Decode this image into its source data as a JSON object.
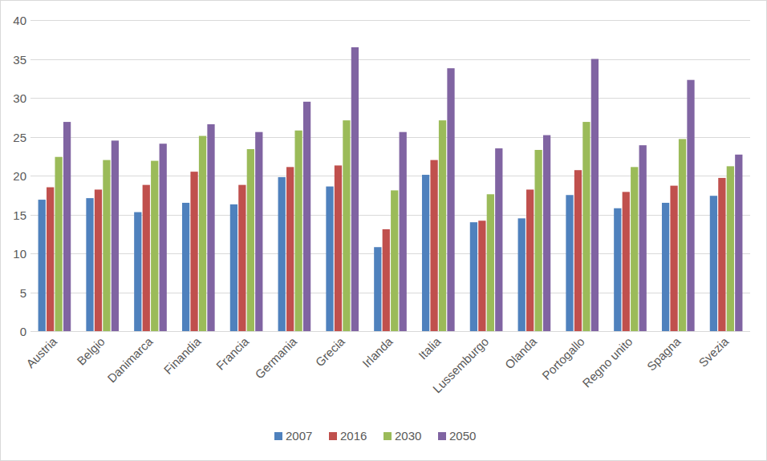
{
  "chart_data": {
    "type": "bar",
    "categories": [
      "Austria",
      "Belgio",
      "Danimarca",
      "Finandia",
      "Francia",
      "Germania",
      "Grecia",
      "Irlanda",
      "Italia",
      "Lussemburgo",
      "Olanda",
      "Portogallo",
      "Regno unito",
      "Spagna",
      "Svezia"
    ],
    "series": [
      {
        "name": "2007",
        "color": "#4f81bd",
        "values": [
          16.9,
          17.1,
          15.3,
          16.5,
          16.3,
          19.8,
          18.6,
          10.8,
          20.1,
          14.0,
          14.5,
          17.5,
          15.8,
          16.5,
          17.4
        ]
      },
      {
        "name": "2016",
        "color": "#c0504d",
        "values": [
          18.5,
          18.2,
          18.8,
          20.5,
          18.8,
          21.1,
          21.3,
          13.1,
          22.0,
          14.2,
          18.2,
          20.7,
          17.9,
          18.7,
          19.7
        ]
      },
      {
        "name": "2030",
        "color": "#9bbb59",
        "values": [
          22.4,
          22.0,
          21.9,
          25.1,
          23.4,
          25.8,
          27.1,
          18.1,
          27.1,
          17.6,
          23.3,
          26.9,
          21.1,
          24.7,
          21.2
        ]
      },
      {
        "name": "2050",
        "color": "#8064a2",
        "values": [
          26.9,
          24.5,
          24.1,
          26.6,
          25.6,
          29.5,
          36.5,
          25.6,
          33.8,
          23.5,
          25.2,
          35.0,
          23.9,
          32.3,
          22.7
        ]
      }
    ],
    "ylim": [
      0,
      40
    ],
    "yticks": [
      0,
      5,
      10,
      15,
      20,
      25,
      30,
      35,
      40
    ],
    "grid": true,
    "legend": "bottom"
  }
}
